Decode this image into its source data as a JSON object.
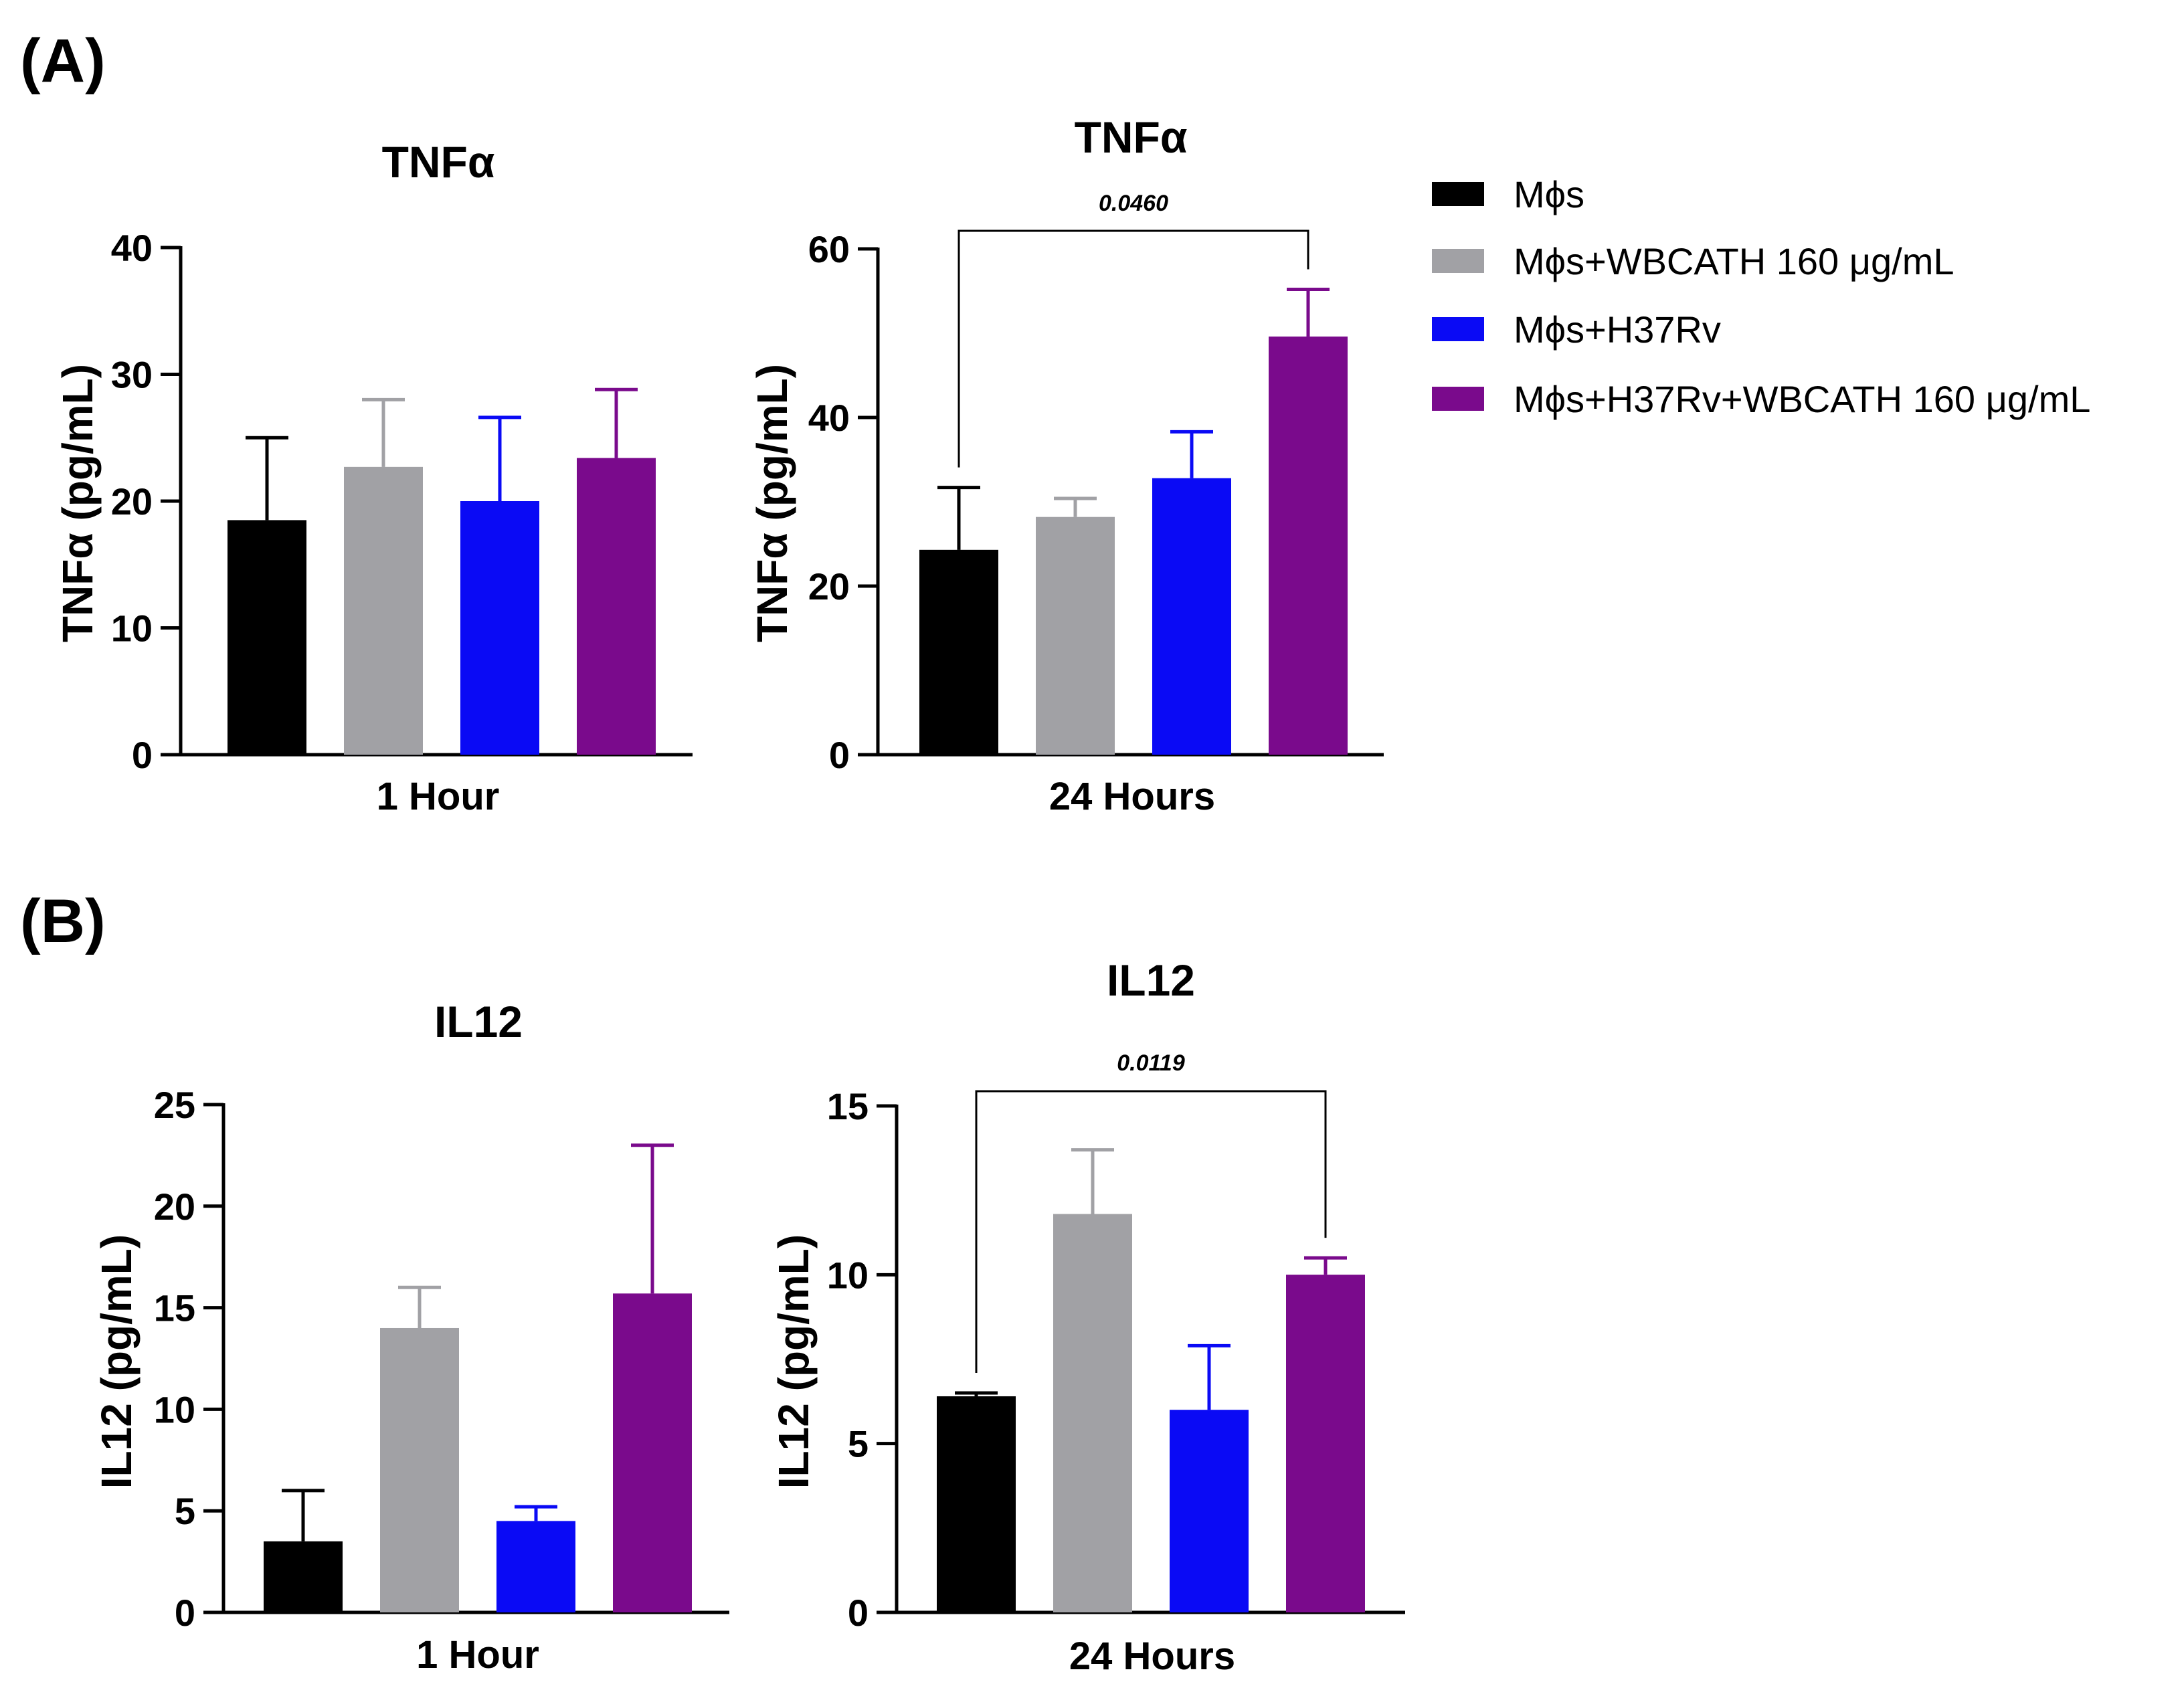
{
  "panels": [
    {
      "label": "(A)"
    },
    {
      "label": "(B)"
    }
  ],
  "legend": [
    {
      "name": "Mϕs",
      "color": "#000000"
    },
    {
      "name": "Mϕs+WBCATH 160 μg/mL",
      "color": "#a1a1a5"
    },
    {
      "name": "Mϕs+H37Rv",
      "color": "#0a0af5"
    },
    {
      "name": "Mϕs+H37Rv+WBCATH 160 μg/mL",
      "color": "#7a0a8c"
    }
  ],
  "chart_data": [
    {
      "type": "bar",
      "panel": "(A)",
      "title": "TNFα",
      "ylabel": "TNFα (pg/mL)",
      "xlabel": "1 Hour",
      "ylim": [
        0,
        40
      ],
      "yticks": [
        0,
        10,
        20,
        30,
        40
      ],
      "values": [
        18.5,
        22.7,
        20.0,
        23.4
      ],
      "errors": [
        6.5,
        5.3,
        6.6,
        5.4
      ],
      "significance": null
    },
    {
      "type": "bar",
      "panel": "(A)",
      "title": "TNFα",
      "ylabel": "TNFα (pg/mL)",
      "xlabel": "24 Hours",
      "ylim": [
        0,
        60
      ],
      "yticks": [
        0,
        20,
        40,
        60
      ],
      "values": [
        24.3,
        28.2,
        32.8,
        49.6
      ],
      "errors": [
        7.4,
        2.2,
        5.5,
        5.6
      ],
      "significance": {
        "from": 0,
        "to": 3,
        "label": "0.0460"
      }
    },
    {
      "type": "bar",
      "panel": "(B)",
      "title": "IL12",
      "ylabel": "IL12 (pg/mL)",
      "xlabel": "1 Hour",
      "ylim": [
        0,
        25
      ],
      "yticks": [
        0,
        5,
        10,
        15,
        20,
        25
      ],
      "values": [
        3.5,
        14.0,
        4.5,
        15.7
      ],
      "errors": [
        2.5,
        2.0,
        0.7,
        7.3
      ],
      "significance": null
    },
    {
      "type": "bar",
      "panel": "(B)",
      "title": "IL12",
      "ylabel": "IL12 (pg/mL)",
      "xlabel": "24 Hours",
      "ylim": [
        0,
        15
      ],
      "yticks": [
        0,
        5,
        10,
        15
      ],
      "values": [
        6.4,
        11.8,
        6.0,
        10.0
      ],
      "errors": [
        0.1,
        1.9,
        1.9,
        0.5
      ],
      "significance": {
        "from": 0,
        "to": 3,
        "label": "0.0119"
      }
    }
  ]
}
